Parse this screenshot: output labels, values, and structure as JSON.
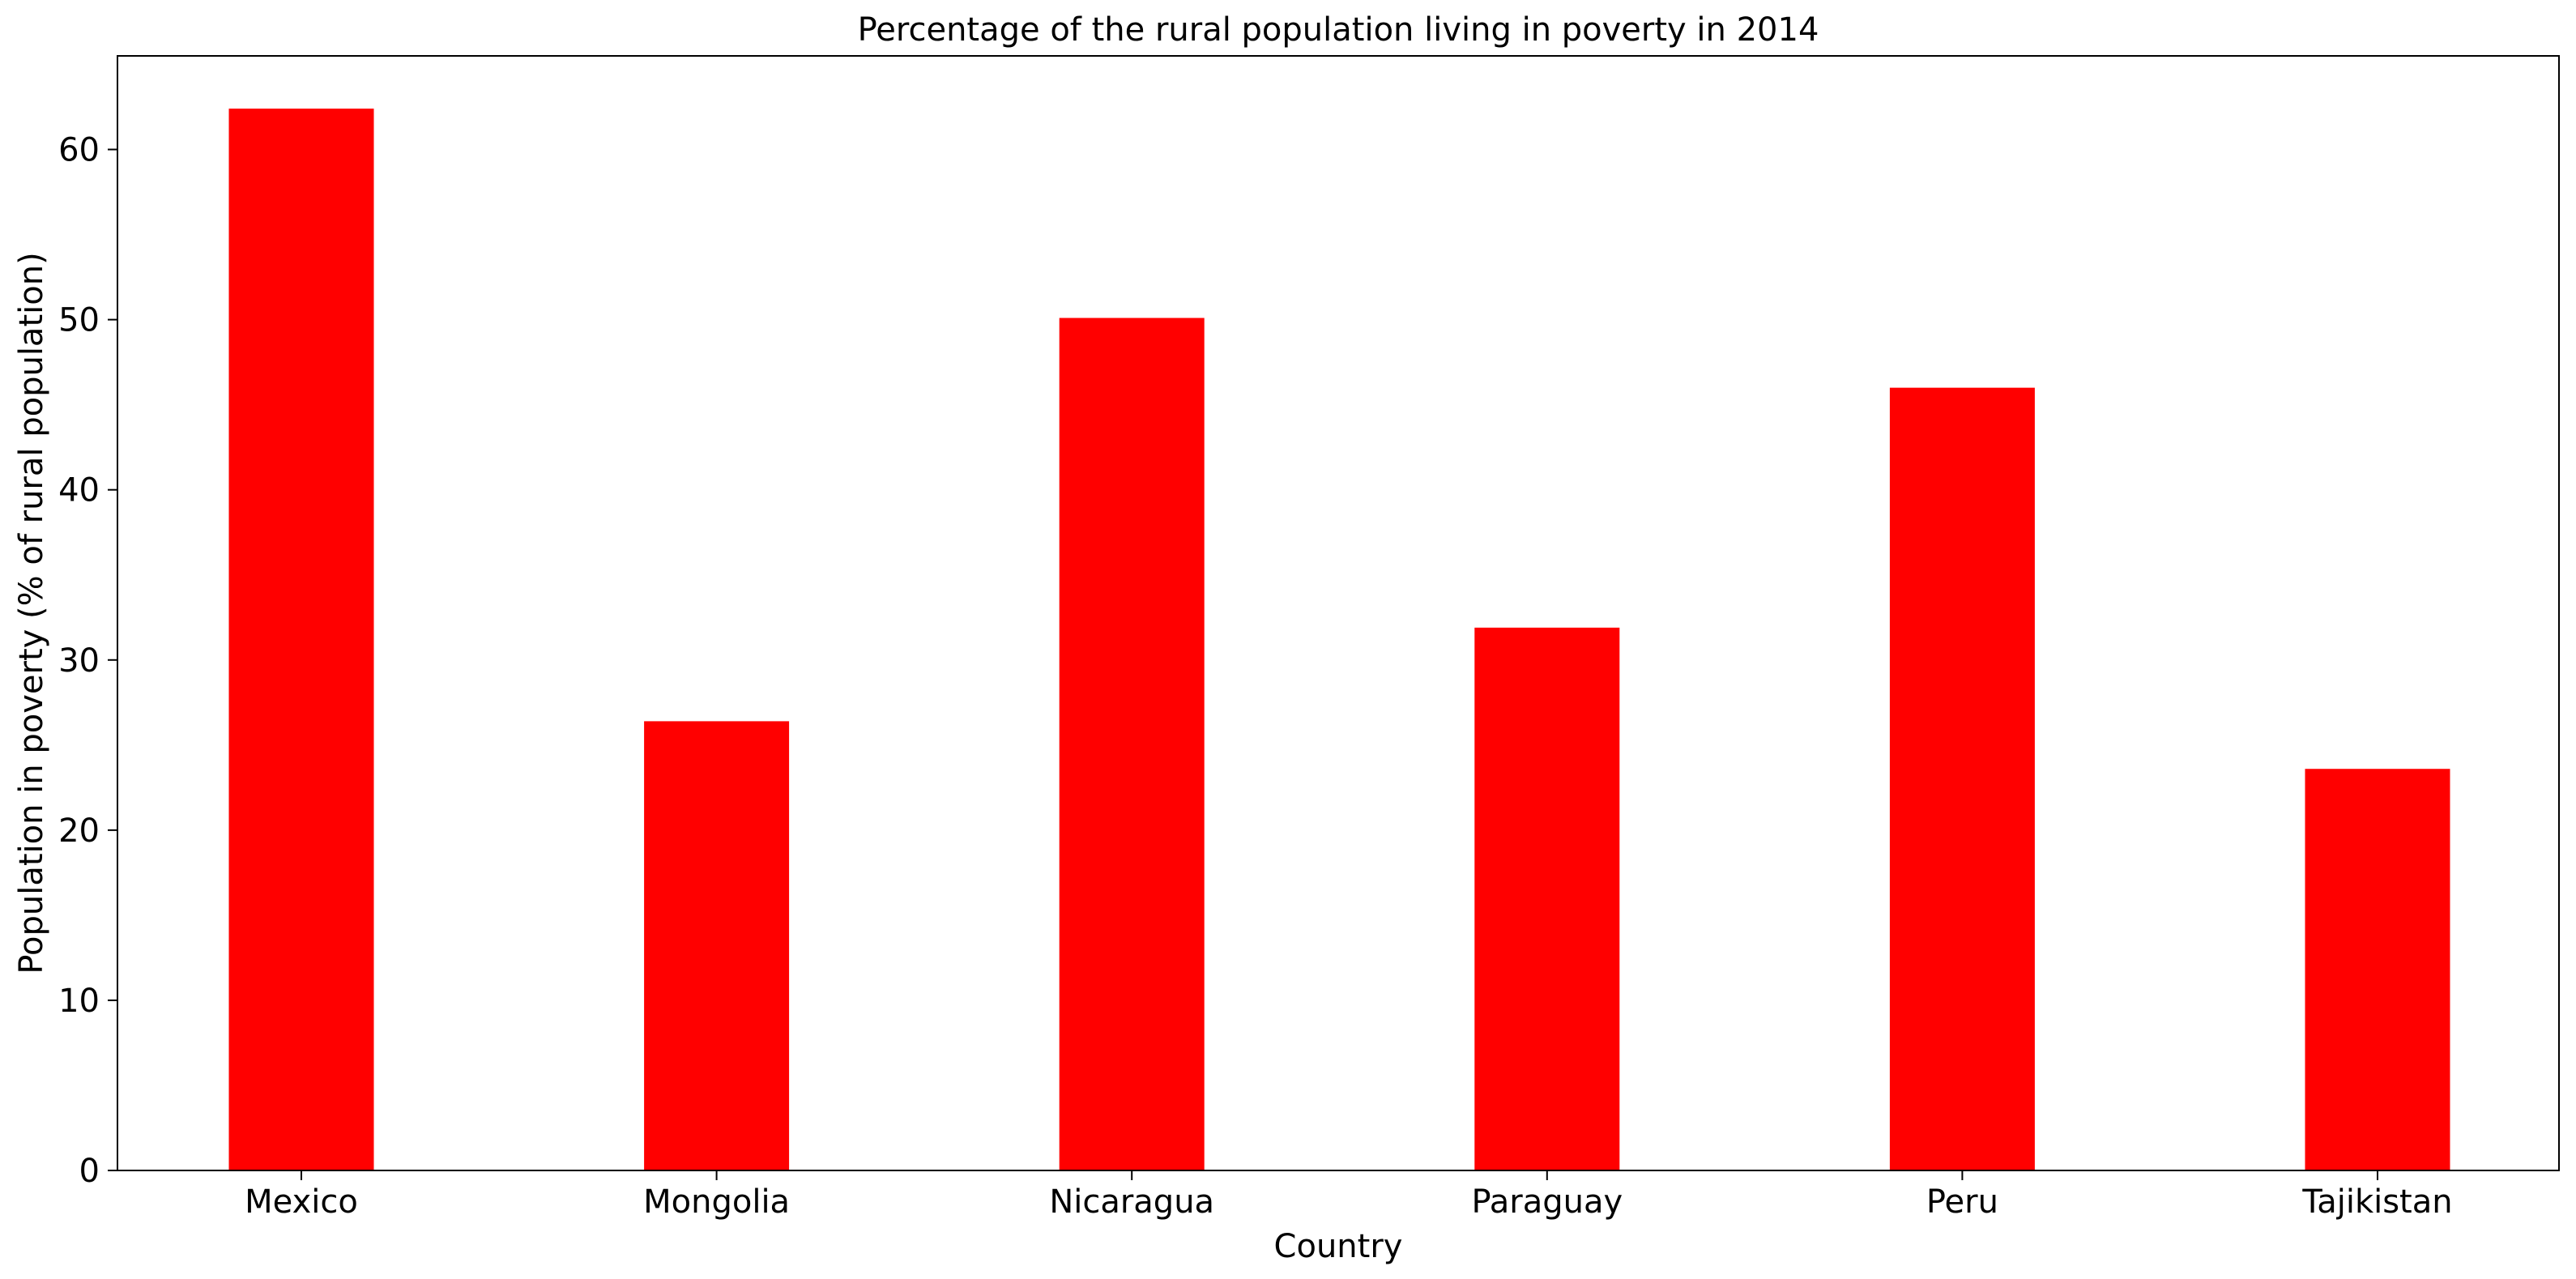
{
  "chart_data": {
    "type": "bar",
    "title": "Percentage of the rural population living in poverty in 2014",
    "xlabel": "Country",
    "ylabel": "Population in poverty (% of rural population)",
    "categories": [
      "Mexico",
      "Mongolia",
      "Nicaragua",
      "Paraguay",
      "Peru",
      "Tajikistan"
    ],
    "values": [
      62.4,
      26.4,
      50.1,
      31.9,
      46.0,
      23.6
    ],
    "ylim": [
      0,
      65.5
    ],
    "yticks": [
      0,
      10,
      20,
      30,
      40,
      50,
      60
    ],
    "bar_color": "#ff0000",
    "grid": false,
    "legend": "none"
  }
}
